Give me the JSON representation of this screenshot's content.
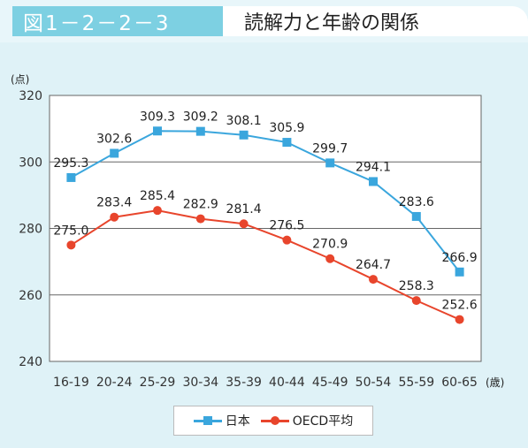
{
  "header": {
    "figure_label": "図1－2－2－3",
    "title": "読解力と年齢の関係"
  },
  "colors": {
    "label_bg": "#7dd0e2",
    "panel_bg": "#dff2f7",
    "japan": "#3aa6dd",
    "oecd": "#e8452c"
  },
  "chart_data": {
    "type": "line",
    "categories": [
      "16-19",
      "20-24",
      "25-29",
      "30-34",
      "35-39",
      "40-44",
      "45-49",
      "50-54",
      "55-59",
      "60-65"
    ],
    "series": [
      {
        "name": "日本",
        "marker": "square",
        "values": [
          295.3,
          302.6,
          309.3,
          309.2,
          308.1,
          305.9,
          299.7,
          294.1,
          283.6,
          266.9
        ]
      },
      {
        "name": "OECD平均",
        "marker": "circle",
        "values": [
          275.0,
          283.4,
          285.4,
          282.9,
          281.4,
          276.5,
          270.9,
          264.7,
          258.3,
          252.6
        ]
      }
    ],
    "ylim": [
      240,
      320
    ],
    "yticks": [
      240,
      260,
      280,
      300,
      320
    ],
    "ylabel_unit": "(点)",
    "xlabel_unit": "(歳)",
    "grid": true,
    "legend_position": "bottom"
  }
}
